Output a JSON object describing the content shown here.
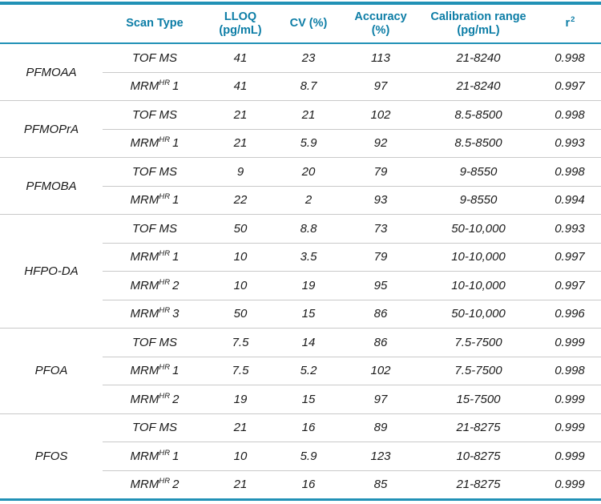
{
  "colors": {
    "teal_line": "#2191B6",
    "header_text": "#0C7DA6",
    "divider": "#C9C9C9",
    "body_text": "#1A1A1A"
  },
  "table": {
    "header": {
      "compound": "",
      "scan_type": "Scan Type",
      "lloq": "LLOQ\n(pg/mL)",
      "cv": "CV (%)",
      "accuracy": "Accuracy (%)",
      "calibration_range": "Calibration range\n(pg/mL)",
      "r2_base": "r",
      "r2_sup": "2"
    },
    "groups": [
      {
        "compound": "PFMOAA",
        "rows": [
          {
            "scan_base": "TOF MS",
            "scan_sup": "",
            "scan_after": "",
            "lloq": "41",
            "cv": "23",
            "accuracy": "113",
            "range": "21-8240",
            "r2": "0.998"
          },
          {
            "scan_base": "MRM",
            "scan_sup": "HR",
            "scan_after": "1",
            "lloq": "41",
            "cv": "8.7",
            "accuracy": "97",
            "range": "21-8240",
            "r2": "0.997"
          }
        ]
      },
      {
        "compound": "PFMOPrA",
        "rows": [
          {
            "scan_base": "TOF MS",
            "scan_sup": "",
            "scan_after": "",
            "lloq": "21",
            "cv": "21",
            "accuracy": "102",
            "range": "8.5-8500",
            "r2": "0.998"
          },
          {
            "scan_base": "MRM",
            "scan_sup": "HR",
            "scan_after": "1",
            "lloq": "21",
            "cv": "5.9",
            "accuracy": "92",
            "range": "8.5-8500",
            "r2": "0.993"
          }
        ]
      },
      {
        "compound": "PFMOBA",
        "rows": [
          {
            "scan_base": "TOF MS",
            "scan_sup": "",
            "scan_after": "",
            "lloq": "9",
            "cv": "20",
            "accuracy": "79",
            "range": "9-8550",
            "r2": "0.998"
          },
          {
            "scan_base": "MRM",
            "scan_sup": "HR",
            "scan_after": "1",
            "lloq": "22",
            "cv": "2",
            "accuracy": "93",
            "range": "9-8550",
            "r2": "0.994"
          }
        ]
      },
      {
        "compound": "HFPO-DA",
        "rows": [
          {
            "scan_base": "TOF MS",
            "scan_sup": "",
            "scan_after": "",
            "lloq": "50",
            "cv": "8.8",
            "accuracy": "73",
            "range": "50-10,000",
            "r2": "0.993"
          },
          {
            "scan_base": "MRM",
            "scan_sup": "HR",
            "scan_after": "1",
            "lloq": "10",
            "cv": "3.5",
            "accuracy": "79",
            "range": "10-10,000",
            "r2": "0.997"
          },
          {
            "scan_base": "MRM",
            "scan_sup": "HR",
            "scan_after": "2",
            "lloq": "10",
            "cv": "19",
            "accuracy": "95",
            "range": "10-10,000",
            "r2": "0.997"
          },
          {
            "scan_base": "MRM",
            "scan_sup": "HR",
            "scan_after": "3",
            "lloq": "50",
            "cv": "15",
            "accuracy": "86",
            "range": "50-10,000",
            "r2": "0.996"
          }
        ]
      },
      {
        "compound": "PFOA",
        "rows": [
          {
            "scan_base": "TOF MS",
            "scan_sup": "",
            "scan_after": "",
            "lloq": "7.5",
            "cv": "14",
            "accuracy": "86",
            "range": "7.5-7500",
            "r2": "0.999"
          },
          {
            "scan_base": "MRM",
            "scan_sup": "HR",
            "scan_after": "1",
            "lloq": "7.5",
            "cv": "5.2",
            "accuracy": "102",
            "range": "7.5-7500",
            "r2": "0.998"
          },
          {
            "scan_base": "MRM",
            "scan_sup": "HR",
            "scan_after": "2",
            "lloq": "19",
            "cv": "15",
            "accuracy": "97",
            "range": "15-7500",
            "r2": "0.999"
          }
        ]
      },
      {
        "compound": "PFOS",
        "rows": [
          {
            "scan_base": "TOF MS",
            "scan_sup": "",
            "scan_after": "",
            "lloq": "21",
            "cv": "16",
            "accuracy": "89",
            "range": "21-8275",
            "r2": "0.999"
          },
          {
            "scan_base": "MRM",
            "scan_sup": "HR",
            "scan_after": "1",
            "lloq": "10",
            "cv": "5.9",
            "accuracy": "123",
            "range": "10-8275",
            "r2": "0.999"
          },
          {
            "scan_base": "MRM",
            "scan_sup": "HR",
            "scan_after": "2",
            "lloq": "21",
            "cv": "16",
            "accuracy": "85",
            "range": "21-8275",
            "r2": "0.999"
          }
        ]
      }
    ]
  }
}
